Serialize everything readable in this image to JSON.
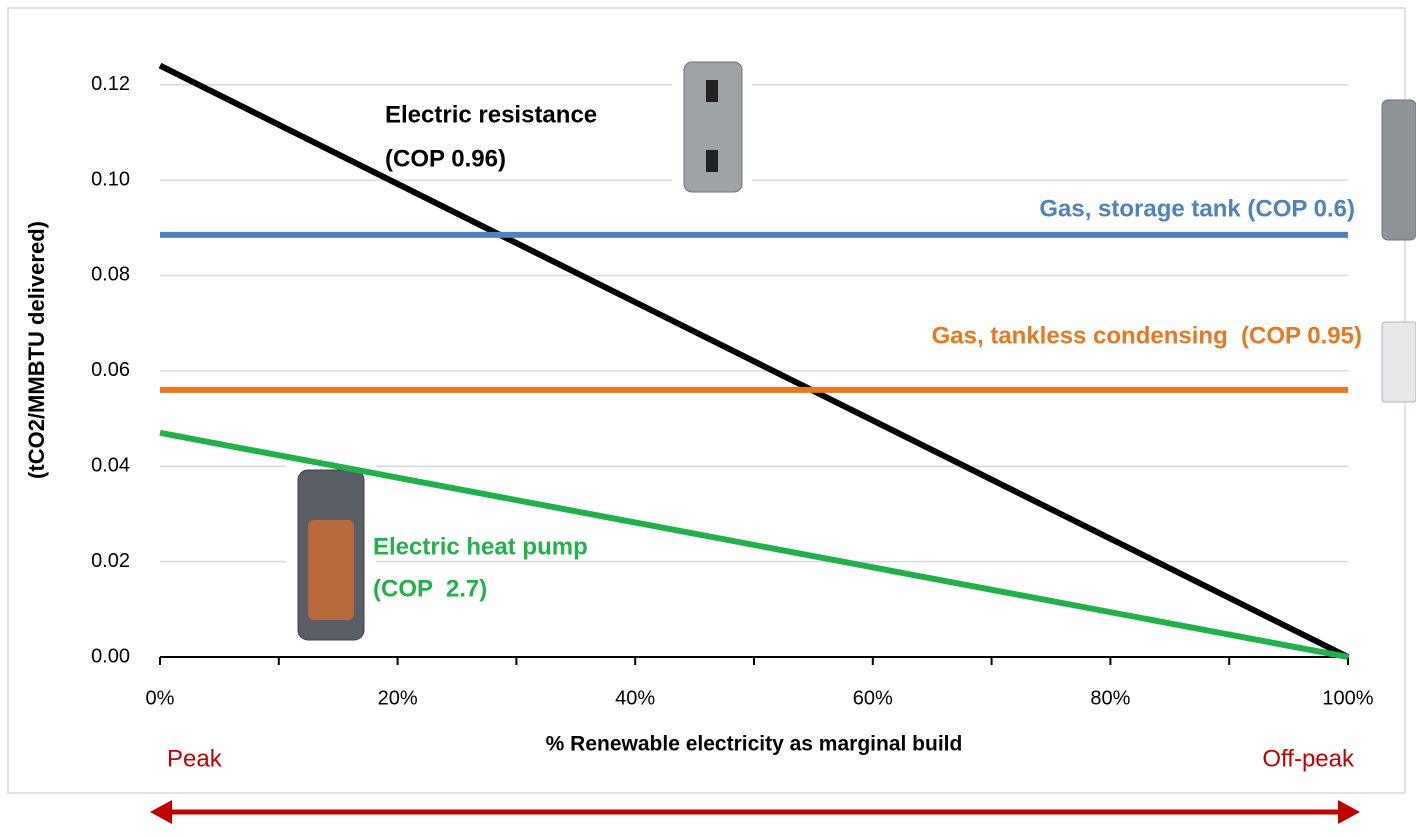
{
  "chart_data": {
    "type": "line",
    "x_label": "% Renewable electricity as marginal build",
    "y_label": "(tCO2/MMBTU delivered)",
    "x": [
      0,
      100
    ],
    "xlim": [
      0,
      100
    ],
    "xticks": [
      {
        "value": 0,
        "label": "0%"
      },
      {
        "value": 20,
        "label": "20%"
      },
      {
        "value": 40,
        "label": "40%"
      },
      {
        "value": 60,
        "label": "60%"
      },
      {
        "value": 80,
        "label": "80%"
      },
      {
        "value": 100,
        "label": "100%"
      }
    ],
    "xminorticks": [
      10,
      30,
      50,
      70,
      90
    ],
    "ylim": [
      0,
      0.13
    ],
    "yticks": [
      {
        "value": 0,
        "label": "0.00"
      },
      {
        "value": 0.02,
        "label": "0.02"
      },
      {
        "value": 0.04,
        "label": "0.04"
      },
      {
        "value": 0.06,
        "label": "0.06"
      },
      {
        "value": 0.08,
        "label": "0.08"
      },
      {
        "value": 0.1,
        "label": "0.10"
      },
      {
        "value": 0.12,
        "label": "0.12"
      }
    ],
    "grid": true,
    "series": [
      {
        "name": "Electric resistance",
        "note": "(COP 0.96)",
        "color": "#000000",
        "values": [
          0.124,
          0
        ]
      },
      {
        "name": "Gas, storage tank (COP 0.6)",
        "color": "#4f81bd",
        "values": [
          0.0885,
          0.0885
        ]
      },
      {
        "name": "Gas, tankless condensing  (COP 0.95)",
        "color": "#e87722",
        "values": [
          0.056,
          0.056
        ]
      },
      {
        "name": "Electric heat pump",
        "note": "(COP  2.7)",
        "color": "#22b04b",
        "values": [
          0.047,
          0
        ]
      }
    ],
    "annotations": [
      "Peak",
      "Off-peak"
    ]
  }
}
